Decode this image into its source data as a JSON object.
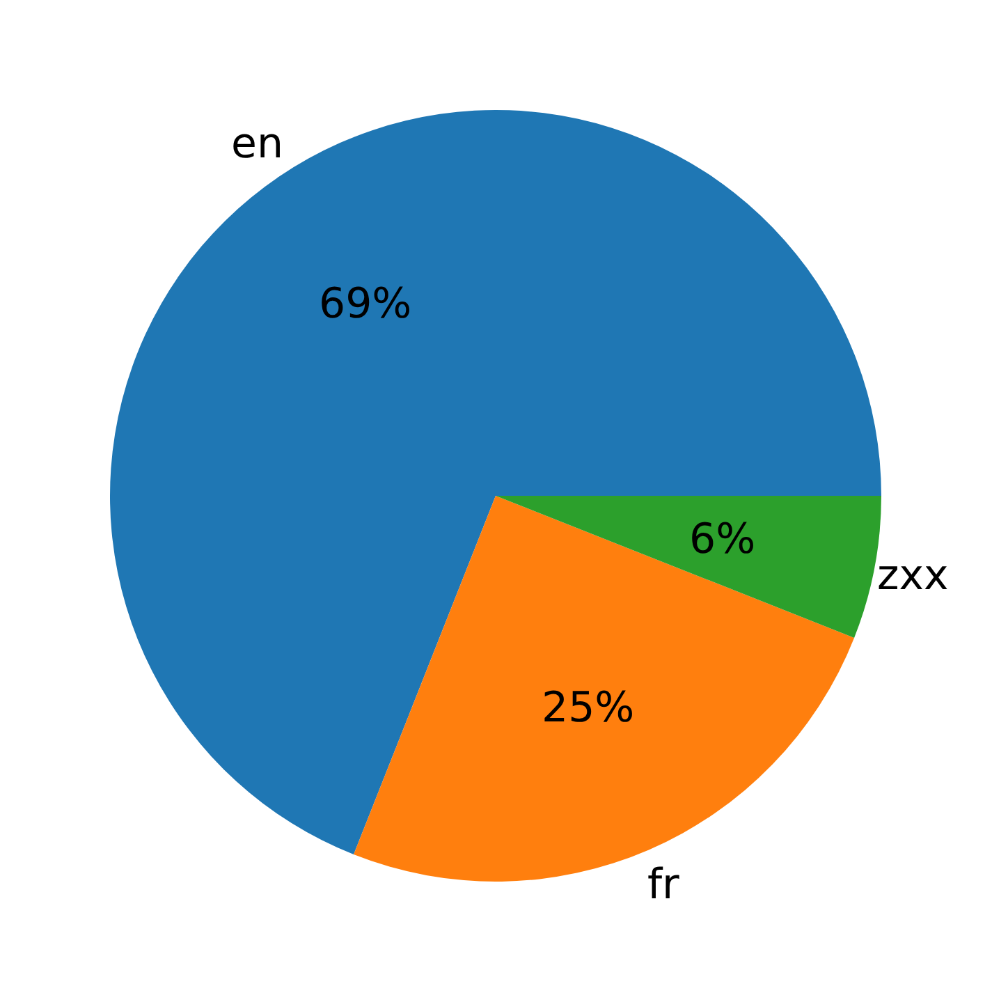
{
  "chart_data": {
    "type": "pie",
    "categories": [
      "en",
      "fr",
      "zxx"
    ],
    "values": [
      69,
      25,
      6
    ],
    "value_labels": [
      "69%",
      "25%",
      "6%"
    ],
    "colors": [
      "#1f77b4",
      "#ff7f0e",
      "#2ca02c"
    ],
    "legend": false
  }
}
